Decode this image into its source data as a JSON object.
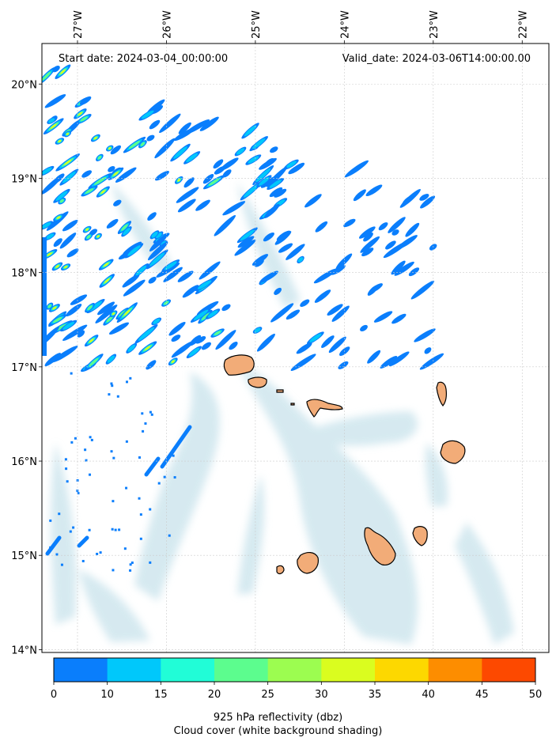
{
  "header": {
    "start_date": "Start date: 2024-03-04_00:00:00",
    "valid_date": "Valid_date: 2024-03-06T14:00:00.00"
  },
  "axes": {
    "lon_ticks": [
      {
        "value": -27,
        "label": "27°W"
      },
      {
        "value": -26,
        "label": "26°W"
      },
      {
        "value": -25,
        "label": "25°W"
      },
      {
        "value": -24,
        "label": "24°W"
      },
      {
        "value": -23,
        "label": "23°W"
      },
      {
        "value": -22,
        "label": "22°W"
      }
    ],
    "lat_ticks": [
      {
        "value": 20,
        "label": "20°N"
      },
      {
        "value": 19,
        "label": "19°N"
      },
      {
        "value": 18,
        "label": "18°N"
      },
      {
        "value": 17,
        "label": "17°N"
      },
      {
        "value": 16,
        "label": "16°N"
      },
      {
        "value": 15,
        "label": "15°N"
      },
      {
        "value": 14,
        "label": "14°N"
      }
    ],
    "lon_range": [
      -27.4,
      -21.7
    ],
    "lat_range": [
      13.97,
      20.43
    ],
    "grid": true
  },
  "colorbar": {
    "levels": [
      0,
      10,
      15,
      20,
      25,
      30,
      35,
      40,
      45,
      50
    ],
    "colors": [
      "#0a7efc",
      "#00c8fb",
      "#21fdd7",
      "#5cfd8e",
      "#9cfd50",
      "#dafd1f",
      "#fdd800",
      "#fd8d00",
      "#fd4900"
    ],
    "label_line1": "925 hPa reflectivity (dbz)",
    "label_line2": "Cloud cover (white background shading)"
  },
  "colors": {
    "land": "#f2ac78",
    "cloud": "#cfe6ee",
    "coast": "#000000"
  }
}
